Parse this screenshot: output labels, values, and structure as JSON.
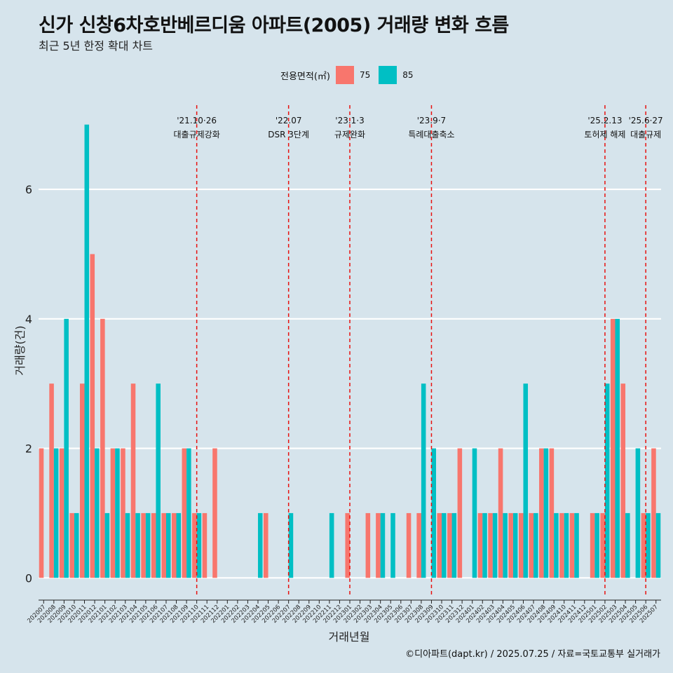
{
  "header": {
    "title": "신가 신창6차호반베르디움 아파트(2005) 거래량 변화 흐름",
    "subtitle": "최근 5년 한정 확대 차트"
  },
  "legend": {
    "title": "전용면적(㎡)",
    "items": [
      {
        "label": "75",
        "color": "#f8766d"
      },
      {
        "label": "85",
        "color": "#00bfc4"
      }
    ]
  },
  "caption": "©디아파트(dapt.kr) / 2025.07.25 / 자료=국토교통부 실거래가",
  "chart_data": {
    "type": "bar",
    "title": "신가 신창6차호반베르디움 아파트(2005) 거래량 변화 흐름",
    "xlabel": "거래년월",
    "ylabel": "거래량(건)",
    "ylim": [
      -0.3,
      7.3
    ],
    "yticks": [
      0,
      2,
      4,
      6
    ],
    "grid": true,
    "legend_position": "top",
    "categories": [
      "202007",
      "202008",
      "202009",
      "202010",
      "202011",
      "202012",
      "202101",
      "202102",
      "202103",
      "202104",
      "202105",
      "202106",
      "202107",
      "202108",
      "202109",
      "202110",
      "202111",
      "202112",
      "202201",
      "202202",
      "202203",
      "202204",
      "202205",
      "202206",
      "202207",
      "202208",
      "202209",
      "202210",
      "202211",
      "202212",
      "202301",
      "202302",
      "202303",
      "202304",
      "202305",
      "202306",
      "202307",
      "202308",
      "202309",
      "202310",
      "202311",
      "202312",
      "202401",
      "202402",
      "202403",
      "202404",
      "202405",
      "202406",
      "202407",
      "202408",
      "202409",
      "202410",
      "202411",
      "202412",
      "202501",
      "202502",
      "202503",
      "202504",
      "202505",
      "202506",
      "202507"
    ],
    "series": [
      {
        "name": "75",
        "color": "#f8766d",
        "values": [
          2,
          3,
          2,
          1,
          3,
          5,
          4,
          2,
          2,
          3,
          1,
          1,
          1,
          1,
          2,
          1,
          1,
          2,
          0,
          0,
          0,
          0,
          1,
          0,
          0,
          0,
          0,
          0,
          0,
          0,
          1,
          0,
          1,
          1,
          0,
          0,
          1,
          1,
          0,
          1,
          1,
          2,
          0,
          1,
          1,
          2,
          1,
          1,
          1,
          2,
          2,
          1,
          1,
          0,
          1,
          1,
          4,
          3,
          0,
          1,
          2
        ]
      },
      {
        "name": "85",
        "color": "#00bfc4",
        "values": [
          0,
          2,
          4,
          1,
          7,
          2,
          1,
          2,
          1,
          1,
          1,
          3,
          1,
          1,
          2,
          1,
          0,
          0,
          0,
          0,
          0,
          1,
          0,
          0,
          1,
          0,
          0,
          0,
          1,
          0,
          0,
          0,
          0,
          1,
          1,
          0,
          0,
          3,
          2,
          1,
          1,
          0,
          2,
          1,
          1,
          1,
          1,
          3,
          1,
          2,
          1,
          1,
          1,
          0,
          1,
          3,
          4,
          1,
          2,
          1,
          1
        ]
      }
    ],
    "annotations": [
      {
        "category": "202110",
        "date": "'21.10·26",
        "label": "대출규제강화"
      },
      {
        "category": "202207",
        "date": "'22.07",
        "label": "DSR 3단계"
      },
      {
        "category": "202301",
        "date": "'23.1·3",
        "label": "규제완화"
      },
      {
        "category": "202309",
        "date": "'23.9·7",
        "label": "특례대출축소"
      },
      {
        "category": "202502",
        "date": "'25.2.13",
        "label": "토허제 해제"
      },
      {
        "category": "202506",
        "date": "'25.6·27",
        "label": "대출규제"
      }
    ]
  }
}
